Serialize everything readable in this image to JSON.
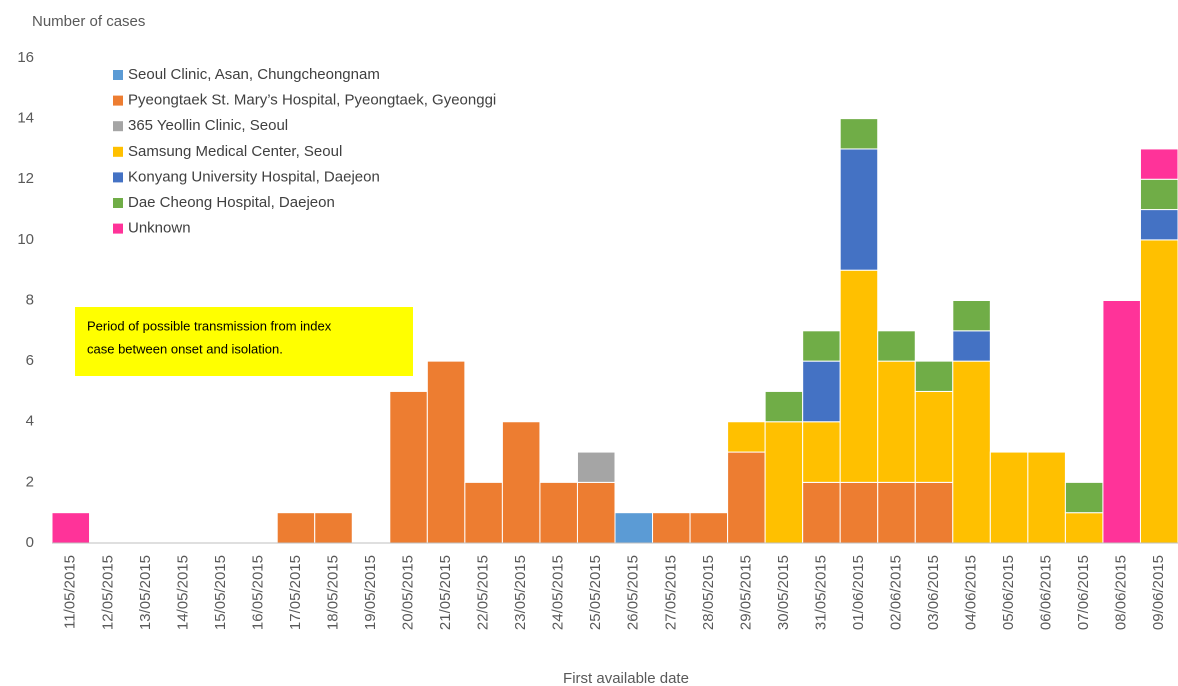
{
  "chart_data": {
    "type": "stacked-bar",
    "y_label": "Number of cases",
    "x_label": "First available date",
    "annotation": [
      "Period of possible transmission from index",
      "case between onset and isolation."
    ],
    "categories": [
      "11/05/2015",
      "12/05/2015",
      "13/05/2015",
      "14/05/2015",
      "15/05/2015",
      "16/05/2015",
      "17/05/2015",
      "18/05/2015",
      "19/05/2015",
      "20/05/2015",
      "21/05/2015",
      "22/05/2015",
      "23/05/2015",
      "24/05/2015",
      "25/05/2015",
      "26/05/2015",
      "27/05/2015",
      "28/05/2015",
      "29/05/2015",
      "30/05/2015",
      "31/05/2015",
      "01/06/2015",
      "02/06/2015",
      "03/06/2015",
      "04/06/2015",
      "05/06/2015",
      "06/06/2015",
      "07/06/2015",
      "08/06/2015",
      "09/06/2015"
    ],
    "series": [
      {
        "name": "Seoul Clinic, Asan, Chungcheongnam",
        "color": "#5b9bd5",
        "values": [
          0,
          0,
          0,
          0,
          0,
          0,
          0,
          0,
          0,
          0,
          0,
          0,
          0,
          0,
          0,
          1,
          0,
          0,
          0,
          0,
          0,
          0,
          0,
          0,
          0,
          0,
          0,
          0,
          0,
          0
        ]
      },
      {
        "name": "Pyeongtaek St. Mary’s Hospital, Pyeongtaek, Gyeonggi",
        "color": "#ed7d31",
        "values": [
          0,
          0,
          0,
          0,
          0,
          0,
          1,
          1,
          0,
          5,
          6,
          2,
          4,
          2,
          2,
          0,
          1,
          1,
          3,
          0,
          2,
          2,
          2,
          2,
          0,
          0,
          0,
          0,
          0,
          0
        ]
      },
      {
        "name": "365 Yeollin Clinic, Seoul",
        "color": "#a5a5a5",
        "values": [
          0,
          0,
          0,
          0,
          0,
          0,
          0,
          0,
          0,
          0,
          0,
          0,
          0,
          0,
          1,
          0,
          0,
          0,
          0,
          0,
          0,
          0,
          0,
          0,
          0,
          0,
          0,
          0,
          0,
          0
        ]
      },
      {
        "name": "Samsung Medical Center, Seoul",
        "color": "#ffc000",
        "values": [
          0,
          0,
          0,
          0,
          0,
          0,
          0,
          0,
          0,
          0,
          0,
          0,
          0,
          0,
          0,
          0,
          0,
          0,
          1,
          4,
          2,
          7,
          4,
          3,
          6,
          3,
          3,
          1,
          0,
          10
        ]
      },
      {
        "name": "Konyang University Hospital, Daejeon",
        "color": "#4472c4",
        "values": [
          0,
          0,
          0,
          0,
          0,
          0,
          0,
          0,
          0,
          0,
          0,
          0,
          0,
          0,
          0,
          0,
          0,
          0,
          0,
          0,
          2,
          4,
          0,
          0,
          1,
          0,
          0,
          0,
          0,
          1
        ]
      },
      {
        "name": "Dae Cheong Hospital, Daejeon",
        "color": "#70ad47",
        "values": [
          0,
          0,
          0,
          0,
          0,
          0,
          0,
          0,
          0,
          0,
          0,
          0,
          0,
          0,
          0,
          0,
          0,
          0,
          0,
          1,
          1,
          1,
          1,
          1,
          1,
          0,
          0,
          1,
          0,
          1
        ]
      },
      {
        "name": "Unknown",
        "color": "#ff3399",
        "values": [
          1,
          0,
          0,
          0,
          0,
          0,
          0,
          0,
          0,
          0,
          0,
          0,
          0,
          0,
          0,
          0,
          0,
          0,
          0,
          0,
          0,
          0,
          0,
          0,
          0,
          0,
          0,
          0,
          8,
          1
        ]
      }
    ],
    "ylim": [
      0,
      16
    ],
    "yticks": [
      0,
      2,
      4,
      6,
      8,
      10,
      12,
      14,
      16
    ],
    "grid": false
  }
}
